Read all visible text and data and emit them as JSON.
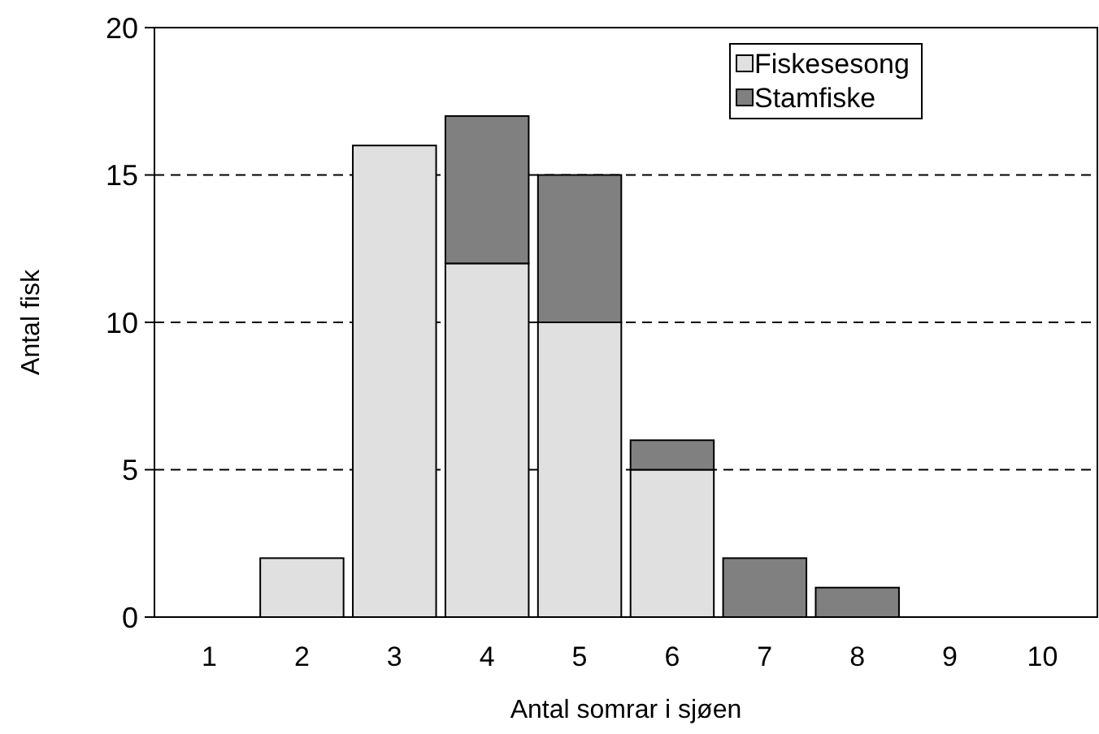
{
  "chart_data": {
    "type": "bar",
    "stacked": true,
    "xlabel": "Antal somrar i sjøen",
    "ylabel": "Antal fisk",
    "categories": [
      "1",
      "2",
      "3",
      "4",
      "5",
      "6",
      "7",
      "8",
      "9",
      "10"
    ],
    "series": [
      {
        "name": "Fiskesesong",
        "color": "#e0e0e0",
        "values": [
          0,
          2,
          16,
          12,
          10,
          5,
          0,
          0,
          0,
          0
        ]
      },
      {
        "name": "Stamfiske",
        "color": "#808080",
        "values": [
          0,
          0,
          0,
          5,
          5,
          1,
          2,
          1,
          0,
          0
        ]
      }
    ],
    "ylim": [
      0,
      20
    ],
    "yticks": [
      0,
      5,
      10,
      15,
      20
    ],
    "grid": "y",
    "legend": "top right"
  }
}
